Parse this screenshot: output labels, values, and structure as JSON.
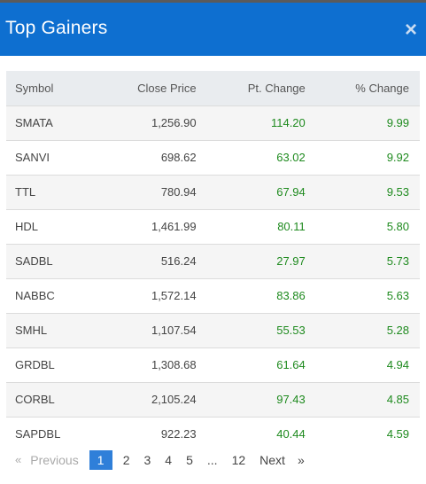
{
  "modal": {
    "title": "Top Gainers",
    "close_label": "×"
  },
  "table": {
    "headers": {
      "symbol": "Symbol",
      "close": "Close Price",
      "pt": "Pt. Change",
      "pct": "% Change"
    },
    "rows": [
      {
        "symbol": "SMATA",
        "close": "1,256.90",
        "pt": "114.20",
        "pct": "9.99"
      },
      {
        "symbol": "SANVI",
        "close": "698.62",
        "pt": "63.02",
        "pct": "9.92"
      },
      {
        "symbol": "TTL",
        "close": "780.94",
        "pt": "67.94",
        "pct": "9.53"
      },
      {
        "symbol": "HDL",
        "close": "1,461.99",
        "pt": "80.11",
        "pct": "5.80"
      },
      {
        "symbol": "SADBL",
        "close": "516.24",
        "pt": "27.97",
        "pct": "5.73"
      },
      {
        "symbol": "NABBC",
        "close": "1,572.14",
        "pt": "83.86",
        "pct": "5.63"
      },
      {
        "symbol": "SMHL",
        "close": "1,107.54",
        "pt": "55.53",
        "pct": "5.28"
      },
      {
        "symbol": "GRDBL",
        "close": "1,308.68",
        "pt": "61.64",
        "pct": "4.94"
      },
      {
        "symbol": "CORBL",
        "close": "2,105.24",
        "pt": "97.43",
        "pct": "4.85"
      },
      {
        "symbol": "SAPDBL",
        "close": "922.23",
        "pt": "40.44",
        "pct": "4.59"
      }
    ]
  },
  "pagination": {
    "prev_arrow": "«",
    "prev_label": "Previous",
    "pages": [
      "1",
      "2",
      "3",
      "4",
      "5"
    ],
    "ellipsis": "...",
    "last_page": "12",
    "next_label": "Next",
    "next_arrow": "»",
    "current": "1"
  },
  "colors": {
    "header_bg": "#0e6fd0",
    "positive": "#1e8a1e",
    "active_page": "#2f7fd9"
  }
}
